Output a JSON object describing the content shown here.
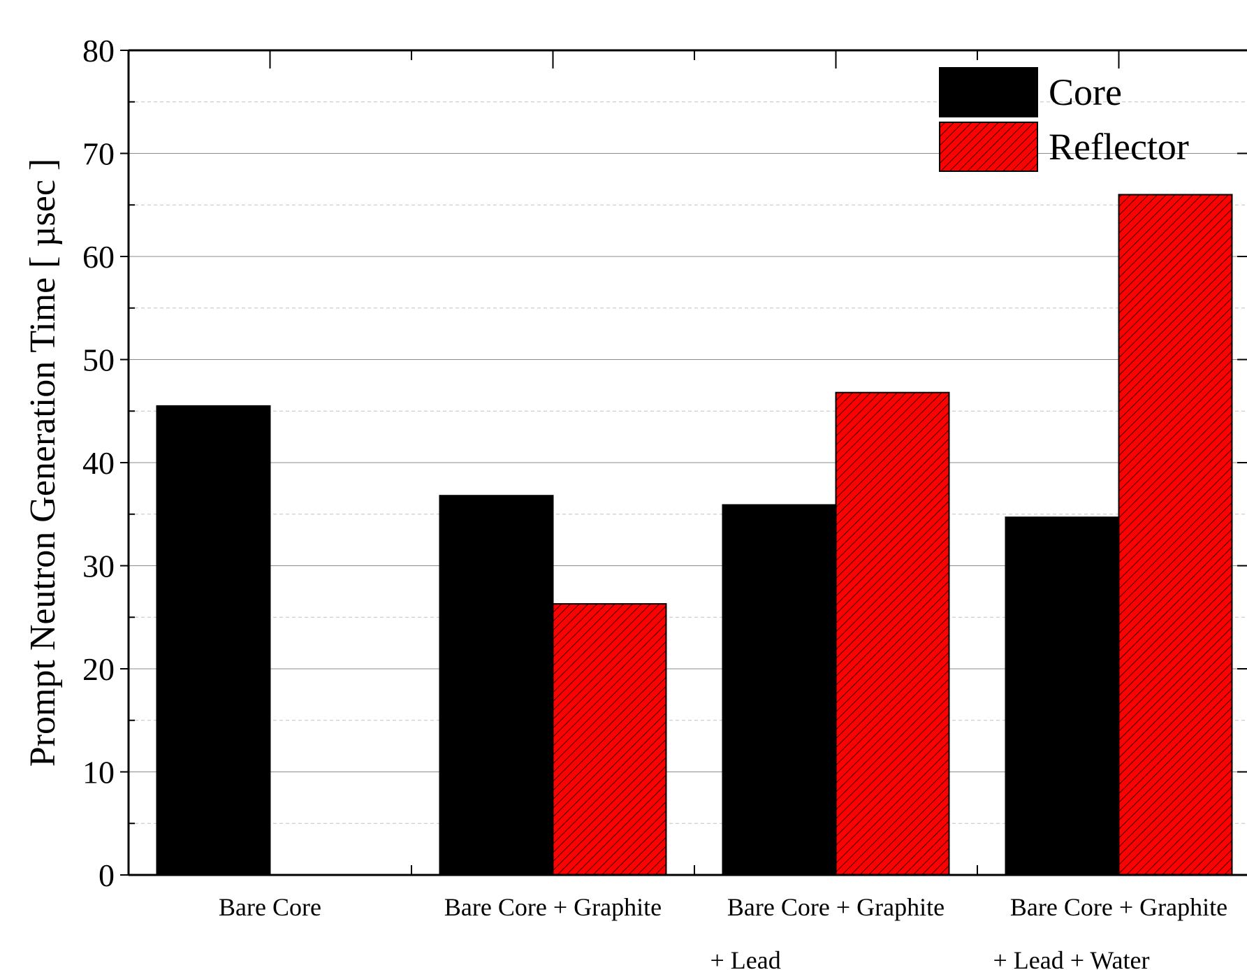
{
  "chart_data": {
    "type": "bar",
    "ylabel": "Prompt Neutron Generation Time [ µsec ]",
    "xlabel": "",
    "ylim": [
      0,
      80
    ],
    "yticks": [
      0,
      10,
      20,
      30,
      40,
      50,
      60,
      70,
      80
    ],
    "grid": true,
    "legend_position": "top-right",
    "categories": [
      [
        "Bare Core"
      ],
      [
        "Bare Core + Graphite"
      ],
      [
        "Bare Core + Graphite",
        "+ Lead"
      ],
      [
        "Bare Core + Graphite",
        "+ Lead + Water"
      ]
    ],
    "series": [
      {
        "name": "Core",
        "color": "#000000",
        "pattern": "solid",
        "values": [
          45.5,
          36.8,
          35.9,
          34.7
        ]
      },
      {
        "name": "Reflector",
        "color": "#ff0000",
        "pattern": "diagonal-hatch",
        "values": [
          null,
          26.3,
          46.8,
          66.0
        ]
      }
    ]
  }
}
